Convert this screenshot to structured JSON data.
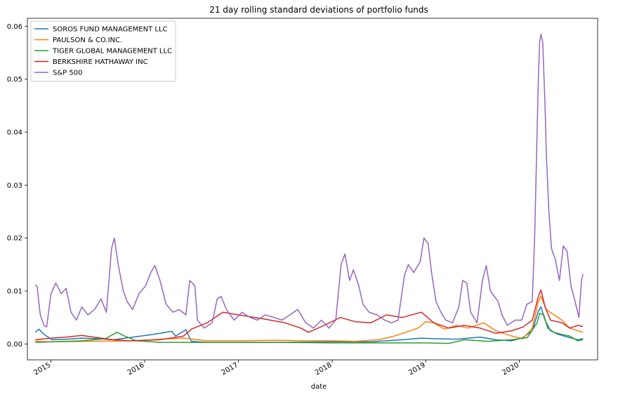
{
  "chart_data": {
    "type": "line",
    "title": "21 day rolling standard deviations of portfolio funds",
    "xlabel": "date",
    "ylabel": "",
    "xlim": [
      "2014-10-01",
      "2020-11-01"
    ],
    "ylim": [
      -0.003,
      0.0615
    ],
    "x_ticks": [
      "2015",
      "2016",
      "2017",
      "2018",
      "2019",
      "2020"
    ],
    "y_ticks": [
      "0.00",
      "0.01",
      "0.02",
      "0.03",
      "0.04",
      "0.05",
      "0.06"
    ],
    "y_tick_values": [
      0,
      0.01,
      0.02,
      0.03,
      0.04,
      0.05,
      0.06
    ],
    "grid": false,
    "legend_position": "top-left",
    "series": [
      {
        "name": "SOROS FUND MANAGEMENT LLC",
        "color": "#1f77b4",
        "points": [
          [
            "2014-11-01",
            0.0022
          ],
          [
            "2014-11-15",
            0.0028
          ],
          [
            "2014-12-05",
            0.0018
          ],
          [
            "2015-01-05",
            0.0008
          ],
          [
            "2015-03-01",
            0.0009
          ],
          [
            "2015-05-01",
            0.0011
          ],
          [
            "2015-07-01",
            0.001
          ],
          [
            "2015-09-01",
            0.0008
          ],
          [
            "2015-11-01",
            0.0012
          ],
          [
            "2016-01-05",
            0.0016
          ],
          [
            "2016-03-01",
            0.002
          ],
          [
            "2016-04-15",
            0.0024
          ],
          [
            "2016-05-01",
            0.0015
          ],
          [
            "2016-06-10",
            0.0027
          ],
          [
            "2016-07-01",
            0.0005
          ],
          [
            "2016-09-01",
            0.0003
          ],
          [
            "2017-01-01",
            0.0003
          ],
          [
            "2017-06-01",
            0.0003
          ],
          [
            "2018-01-01",
            0.0004
          ],
          [
            "2018-06-01",
            0.0004
          ],
          [
            "2018-10-01",
            0.0008
          ],
          [
            "2018-12-15",
            0.0011
          ],
          [
            "2019-02-01",
            0.001
          ],
          [
            "2019-05-01",
            0.0009
          ],
          [
            "2019-08-01",
            0.0013
          ],
          [
            "2019-10-01",
            0.0008
          ],
          [
            "2019-12-01",
            0.0006
          ],
          [
            "2020-01-15",
            0.0012
          ],
          [
            "2020-02-20",
            0.0025
          ],
          [
            "2020-03-15",
            0.0062
          ],
          [
            "2020-03-25",
            0.007
          ],
          [
            "2020-04-10",
            0.0045
          ],
          [
            "2020-05-01",
            0.0025
          ],
          [
            "2020-06-01",
            0.0018
          ],
          [
            "2020-07-15",
            0.0012
          ],
          [
            "2020-08-15",
            0.0008
          ],
          [
            "2020-09-05",
            0.001
          ]
        ]
      },
      {
        "name": "PAULSON & CO.INC.",
        "color": "#ff7f0e",
        "points": [
          [
            "2014-11-01",
            0.0005
          ],
          [
            "2015-01-01",
            0.0004
          ],
          [
            "2015-06-01",
            0.0005
          ],
          [
            "2015-12-01",
            0.0006
          ],
          [
            "2016-03-01",
            0.0009
          ],
          [
            "2016-06-01",
            0.0011
          ],
          [
            "2016-09-01",
            0.0006
          ],
          [
            "2017-01-01",
            0.0006
          ],
          [
            "2017-06-01",
            0.0007
          ],
          [
            "2017-10-01",
            0.0006
          ],
          [
            "2018-01-01",
            0.0006
          ],
          [
            "2018-04-01",
            0.0005
          ],
          [
            "2018-07-01",
            0.0008
          ],
          [
            "2018-09-01",
            0.0015
          ],
          [
            "2018-10-15",
            0.0022
          ],
          [
            "2018-12-01",
            0.003
          ],
          [
            "2019-01-01",
            0.0042
          ],
          [
            "2019-02-01",
            0.004
          ],
          [
            "2019-03-15",
            0.0028
          ],
          [
            "2019-05-01",
            0.0035
          ],
          [
            "2019-06-15",
            0.003
          ],
          [
            "2019-08-15",
            0.004
          ],
          [
            "2019-10-01",
            0.0025
          ],
          [
            "2019-12-01",
            0.0015
          ],
          [
            "2020-01-15",
            0.001
          ],
          [
            "2020-02-20",
            0.003
          ],
          [
            "2020-03-15",
            0.008
          ],
          [
            "2020-03-25",
            0.009
          ],
          [
            "2020-04-15",
            0.0065
          ],
          [
            "2020-05-15",
            0.0055
          ],
          [
            "2020-06-15",
            0.0045
          ],
          [
            "2020-07-15",
            0.003
          ],
          [
            "2020-08-15",
            0.0025
          ],
          [
            "2020-09-05",
            0.0022
          ]
        ]
      },
      {
        "name": "TIGER GLOBAL MANAGEMENT LLC",
        "color": "#2ca02c",
        "points": [
          [
            "2014-11-01",
            0.0003
          ],
          [
            "2015-01-01",
            0.0004
          ],
          [
            "2015-05-01",
            0.0006
          ],
          [
            "2015-08-01",
            0.001
          ],
          [
            "2015-09-15",
            0.0022
          ],
          [
            "2015-10-15",
            0.0015
          ],
          [
            "2015-12-01",
            0.0006
          ],
          [
            "2016-03-01",
            0.0003
          ],
          [
            "2016-09-01",
            0.0003
          ],
          [
            "2017-06-01",
            0.0003
          ],
          [
            "2018-01-01",
            0.0002
          ],
          [
            "2018-06-01",
            0.0002
          ],
          [
            "2019-01-01",
            0.0002
          ],
          [
            "2019-04-01",
            0.0001
          ],
          [
            "2019-06-01",
            0.0008
          ],
          [
            "2019-09-01",
            0.0005
          ],
          [
            "2019-12-01",
            0.0008
          ],
          [
            "2020-02-01",
            0.0012
          ],
          [
            "2020-03-10",
            0.004
          ],
          [
            "2020-03-20",
            0.0058
          ],
          [
            "2020-04-05",
            0.0055
          ],
          [
            "2020-04-20",
            0.003
          ],
          [
            "2020-05-15",
            0.0022
          ],
          [
            "2020-06-15",
            0.0018
          ],
          [
            "2020-07-15",
            0.0015
          ],
          [
            "2020-08-15",
            0.0006
          ],
          [
            "2020-09-05",
            0.0008
          ]
        ]
      },
      {
        "name": "BERKSHIRE HATHAWAY INC",
        "color": "#d62728",
        "points": [
          [
            "2014-11-01",
            0.0008
          ],
          [
            "2015-01-01",
            0.0011
          ],
          [
            "2015-03-01",
            0.0013
          ],
          [
            "2015-05-01",
            0.0016
          ],
          [
            "2015-07-01",
            0.0012
          ],
          [
            "2015-09-01",
            0.0008
          ],
          [
            "2015-11-01",
            0.0006
          ],
          [
            "2016-01-01",
            0.0007
          ],
          [
            "2016-03-01",
            0.0008
          ],
          [
            "2016-06-01",
            0.0015
          ],
          [
            "2016-07-01",
            0.0028
          ],
          [
            "2016-09-01",
            0.004
          ],
          [
            "2016-11-01",
            0.006
          ],
          [
            "2017-01-01",
            0.0055
          ],
          [
            "2017-04-01",
            0.0048
          ],
          [
            "2017-07-01",
            0.004
          ],
          [
            "2017-09-01",
            0.003
          ],
          [
            "2017-10-01",
            0.0022
          ],
          [
            "2017-12-01",
            0.0035
          ],
          [
            "2018-02-01",
            0.005
          ],
          [
            "2018-04-01",
            0.0042
          ],
          [
            "2018-06-01",
            0.004
          ],
          [
            "2018-08-01",
            0.0055
          ],
          [
            "2018-10-01",
            0.005
          ],
          [
            "2018-12-15",
            0.006
          ],
          [
            "2019-02-01",
            0.004
          ],
          [
            "2019-04-01",
            0.003
          ],
          [
            "2019-06-01",
            0.0035
          ],
          [
            "2019-08-01",
            0.003
          ],
          [
            "2019-10-01",
            0.002
          ],
          [
            "2019-12-01",
            0.0025
          ],
          [
            "2020-01-15",
            0.0032
          ],
          [
            "2020-02-20",
            0.0045
          ],
          [
            "2020-03-15",
            0.009
          ],
          [
            "2020-03-25",
            0.0102
          ],
          [
            "2020-04-10",
            0.007
          ],
          [
            "2020-05-01",
            0.0045
          ],
          [
            "2020-06-15",
            0.004
          ],
          [
            "2020-07-15",
            0.003
          ],
          [
            "2020-08-15",
            0.0035
          ],
          [
            "2020-09-05",
            0.0033
          ]
        ]
      },
      {
        "name": "S&P 500",
        "color": "#9467bd",
        "points": [
          [
            "2014-11-01",
            0.0112
          ],
          [
            "2014-11-08",
            0.0108
          ],
          [
            "2014-11-20",
            0.0055
          ],
          [
            "2014-12-05",
            0.0035
          ],
          [
            "2014-12-15",
            0.0032
          ],
          [
            "2015-01-01",
            0.0095
          ],
          [
            "2015-01-20",
            0.0115
          ],
          [
            "2015-02-10",
            0.0095
          ],
          [
            "2015-03-01",
            0.0105
          ],
          [
            "2015-03-20",
            0.006
          ],
          [
            "2015-04-10",
            0.0045
          ],
          [
            "2015-05-01",
            0.007
          ],
          [
            "2015-05-25",
            0.0055
          ],
          [
            "2015-06-20",
            0.0065
          ],
          [
            "2015-07-15",
            0.0085
          ],
          [
            "2015-08-05",
            0.006
          ],
          [
            "2015-08-25",
            0.018
          ],
          [
            "2015-09-05",
            0.02
          ],
          [
            "2015-09-20",
            0.015
          ],
          [
            "2015-10-10",
            0.01
          ],
          [
            "2015-10-25",
            0.008
          ],
          [
            "2015-11-15",
            0.0065
          ],
          [
            "2015-12-10",
            0.0095
          ],
          [
            "2016-01-05",
            0.011
          ],
          [
            "2016-01-25",
            0.0135
          ],
          [
            "2016-02-10",
            0.0148
          ],
          [
            "2016-03-01",
            0.012
          ],
          [
            "2016-03-25",
            0.0075
          ],
          [
            "2016-04-20",
            0.006
          ],
          [
            "2016-05-15",
            0.0065
          ],
          [
            "2016-06-10",
            0.0055
          ],
          [
            "2016-06-25",
            0.012
          ],
          [
            "2016-07-15",
            0.011
          ],
          [
            "2016-07-25",
            0.0045
          ],
          [
            "2016-08-20",
            0.003
          ],
          [
            "2016-09-20",
            0.004
          ],
          [
            "2016-10-10",
            0.0085
          ],
          [
            "2016-10-25",
            0.009
          ],
          [
            "2016-11-15",
            0.0065
          ],
          [
            "2016-12-15",
            0.0045
          ],
          [
            "2017-01-15",
            0.006
          ],
          [
            "2017-02-15",
            0.005
          ],
          [
            "2017-03-15",
            0.0045
          ],
          [
            "2017-04-15",
            0.0055
          ],
          [
            "2017-05-20",
            0.005
          ],
          [
            "2017-06-20",
            0.0045
          ],
          [
            "2017-07-20",
            0.0055
          ],
          [
            "2017-08-20",
            0.0065
          ],
          [
            "2017-09-20",
            0.004
          ],
          [
            "2017-10-20",
            0.003
          ],
          [
            "2017-11-20",
            0.0045
          ],
          [
            "2017-12-20",
            0.003
          ],
          [
            "2018-01-15",
            0.0045
          ],
          [
            "2018-02-05",
            0.015
          ],
          [
            "2018-02-20",
            0.017
          ],
          [
            "2018-03-10",
            0.012
          ],
          [
            "2018-03-25",
            0.014
          ],
          [
            "2018-04-15",
            0.011
          ],
          [
            "2018-05-01",
            0.0075
          ],
          [
            "2018-05-25",
            0.006
          ],
          [
            "2018-06-25",
            0.0055
          ],
          [
            "2018-07-25",
            0.0045
          ],
          [
            "2018-08-20",
            0.004
          ],
          [
            "2018-09-15",
            0.0045
          ],
          [
            "2018-10-10",
            0.013
          ],
          [
            "2018-10-25",
            0.015
          ],
          [
            "2018-11-15",
            0.0135
          ],
          [
            "2018-12-10",
            0.0155
          ],
          [
            "2018-12-25",
            0.02
          ],
          [
            "2019-01-10",
            0.019
          ],
          [
            "2019-01-25",
            0.013
          ],
          [
            "2019-02-10",
            0.008
          ],
          [
            "2019-03-01",
            0.006
          ],
          [
            "2019-03-20",
            0.0045
          ],
          [
            "2019-04-15",
            0.004
          ],
          [
            "2019-05-10",
            0.007
          ],
          [
            "2019-05-25",
            0.012
          ],
          [
            "2019-06-10",
            0.0115
          ],
          [
            "2019-06-25",
            0.006
          ],
          [
            "2019-07-20",
            0.004
          ],
          [
            "2019-08-10",
            0.012
          ],
          [
            "2019-08-25",
            0.0148
          ],
          [
            "2019-09-10",
            0.01
          ],
          [
            "2019-10-10",
            0.008
          ],
          [
            "2019-10-25",
            0.0055
          ],
          [
            "2019-11-15",
            0.0035
          ],
          [
            "2019-12-15",
            0.0045
          ],
          [
            "2020-01-10",
            0.0045
          ],
          [
            "2020-01-30",
            0.0075
          ],
          [
            "2020-02-20",
            0.008
          ],
          [
            "2020-03-01",
            0.021
          ],
          [
            "2020-03-10",
            0.04
          ],
          [
            "2020-03-15",
            0.05
          ],
          [
            "2020-03-20",
            0.057
          ],
          [
            "2020-03-25",
            0.0585
          ],
          [
            "2020-04-01",
            0.057
          ],
          [
            "2020-04-10",
            0.045
          ],
          [
            "2020-04-15",
            0.036
          ],
          [
            "2020-04-25",
            0.025
          ],
          [
            "2020-05-05",
            0.018
          ],
          [
            "2020-05-20",
            0.016
          ],
          [
            "2020-06-05",
            0.012
          ],
          [
            "2020-06-20",
            0.0185
          ],
          [
            "2020-07-05",
            0.0175
          ],
          [
            "2020-07-20",
            0.011
          ],
          [
            "2020-08-05",
            0.008
          ],
          [
            "2020-08-20",
            0.005
          ],
          [
            "2020-08-30",
            0.012
          ],
          [
            "2020-09-05",
            0.0132
          ]
        ]
      }
    ]
  }
}
